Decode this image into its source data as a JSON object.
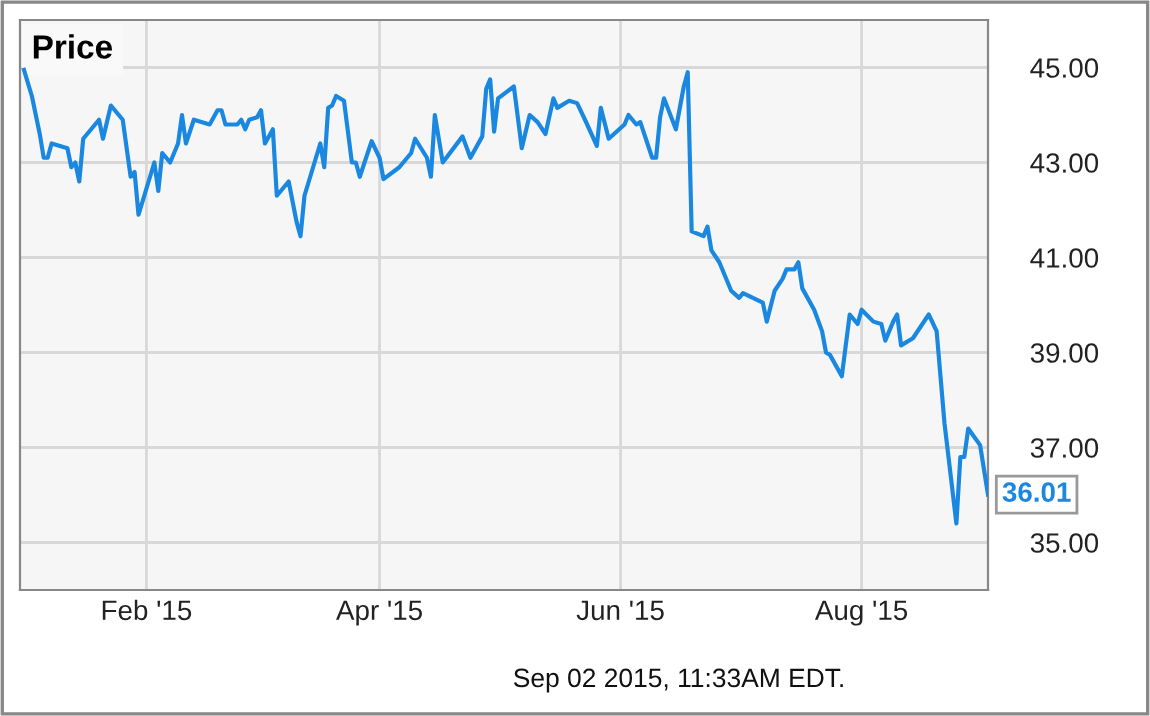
{
  "chart_data": {
    "type": "line",
    "title": "Price",
    "x": [
      "2015-01-01",
      "2015-01-03",
      "2015-01-05",
      "2015-01-06",
      "2015-01-07",
      "2015-01-08",
      "2015-01-12",
      "2015-01-13",
      "2015-01-14",
      "2015-01-15",
      "2015-01-16",
      "2015-01-20",
      "2015-01-21",
      "2015-01-23",
      "2015-01-26",
      "2015-01-28",
      "2015-01-29",
      "2015-01-30",
      "2015-02-03",
      "2015-02-04",
      "2015-02-05",
      "2015-02-07",
      "2015-02-09",
      "2015-02-10",
      "2015-02-11",
      "2015-02-13",
      "2015-02-17",
      "2015-02-19",
      "2015-02-20",
      "2015-02-21",
      "2015-02-24",
      "2015-02-25",
      "2015-02-26",
      "2015-02-27",
      "2015-03-01",
      "2015-03-02",
      "2015-03-03",
      "2015-03-05",
      "2015-03-06",
      "2015-03-09",
      "2015-03-11",
      "2015-03-12",
      "2015-03-13",
      "2015-03-17",
      "2015-03-18",
      "2015-03-19",
      "2015-03-20",
      "2015-03-21",
      "2015-03-23",
      "2015-03-25",
      "2015-03-26",
      "2015-03-27",
      "2015-03-30",
      "2015-04-01",
      "2015-04-02",
      "2015-04-06",
      "2015-04-07",
      "2015-04-09",
      "2015-04-10",
      "2015-04-13",
      "2015-04-14",
      "2015-04-15",
      "2015-04-17",
      "2015-04-22",
      "2015-04-24",
      "2015-04-27",
      "2015-04-28",
      "2015-04-29",
      "2015-04-30",
      "2015-05-01",
      "2015-05-05",
      "2015-05-07",
      "2015-05-09",
      "2015-05-11",
      "2015-05-13",
      "2015-05-15",
      "2015-05-16",
      "2015-05-19",
      "2015-05-21",
      "2015-05-23",
      "2015-05-26",
      "2015-05-27",
      "2015-05-29",
      "2015-06-02",
      "2015-06-03",
      "2015-06-05",
      "2015-06-06",
      "2015-06-09",
      "2015-06-10",
      "2015-06-11",
      "2015-06-12",
      "2015-06-15",
      "2015-06-17",
      "2015-06-18",
      "2015-06-19",
      "2015-06-22",
      "2015-06-23",
      "2015-06-24",
      "2015-06-26",
      "2015-06-29",
      "2015-07-01",
      "2015-07-02",
      "2015-07-07",
      "2015-07-08",
      "2015-07-10",
      "2015-07-12",
      "2015-07-13",
      "2015-07-15",
      "2015-07-16",
      "2015-07-17",
      "2015-07-20",
      "2015-07-22",
      "2015-07-23",
      "2015-07-24",
      "2015-07-27",
      "2015-07-29",
      "2015-07-31",
      "2015-08-01",
      "2015-08-04",
      "2015-08-06",
      "2015-08-07",
      "2015-08-09",
      "2015-08-10",
      "2015-08-11",
      "2015-08-14",
      "2015-08-18",
      "2015-08-20",
      "2015-08-22",
      "2015-08-25",
      "2015-08-26",
      "2015-08-27",
      "2015-08-28",
      "2015-08-31",
      "2015-09-02"
    ],
    "series": [
      {
        "color": "#1a87e0",
        "values": [
          44.95,
          44.4,
          43.6,
          43.1,
          43.1,
          43.4,
          43.3,
          42.9,
          43.0,
          42.6,
          43.5,
          43.9,
          43.5,
          44.2,
          43.9,
          42.7,
          42.8,
          41.9,
          43.0,
          42.4,
          43.2,
          43.0,
          43.4,
          44.0,
          43.4,
          43.9,
          43.8,
          44.1,
          44.1,
          43.8,
          43.8,
          43.9,
          43.7,
          43.9,
          43.95,
          44.1,
          43.4,
          43.7,
          42.3,
          42.6,
          41.75,
          41.45,
          42.3,
          43.4,
          42.9,
          44.15,
          44.2,
          44.4,
          44.3,
          43.0,
          43.0,
          42.7,
          43.45,
          43.1,
          42.65,
          42.9,
          43.0,
          43.2,
          43.5,
          43.1,
          42.7,
          44.0,
          43.0,
          43.55,
          43.1,
          43.55,
          44.55,
          44.75,
          43.65,
          44.35,
          44.6,
          43.3,
          44.0,
          43.85,
          43.6,
          44.35,
          44.15,
          44.3,
          44.25,
          43.9,
          43.35,
          44.15,
          43.5,
          43.8,
          44.0,
          43.8,
          43.85,
          43.1,
          43.1,
          43.95,
          44.35,
          43.7,
          44.6,
          44.9,
          41.55,
          41.45,
          41.65,
          41.15,
          40.9,
          40.3,
          40.15,
          40.25,
          40.05,
          39.65,
          40.3,
          40.55,
          40.75,
          40.75,
          40.9,
          40.35,
          39.9,
          39.45,
          39.0,
          38.95,
          38.5,
          39.8,
          39.6,
          39.9,
          39.65,
          39.6,
          39.25,
          39.65,
          39.8,
          39.15,
          39.3,
          39.8,
          39.45,
          37.5,
          35.4,
          36.8,
          36.8,
          37.4,
          37.05,
          36.01
        ]
      }
    ],
    "xlim": [
      "2014-12-31",
      "2015-09-02"
    ],
    "xticks": [
      {
        "value": "2015-02-01",
        "label": "Feb '15"
      },
      {
        "value": "2015-04-01",
        "label": "Apr '15"
      },
      {
        "value": "2015-06-01",
        "label": "Jun '15"
      },
      {
        "value": "2015-08-01",
        "label": "Aug '15"
      }
    ],
    "ylim": [
      34,
      46
    ],
    "yticks": [
      {
        "value": 35,
        "label": "35.00"
      },
      {
        "value": 37,
        "label": "37.00"
      },
      {
        "value": 39,
        "label": "39.00"
      },
      {
        "value": 41,
        "label": "41.00"
      },
      {
        "value": 43,
        "label": "43.00"
      },
      {
        "value": 45,
        "label": "45.00"
      }
    ],
    "grid": true,
    "legend": false,
    "marker": "none",
    "line_style": "solid",
    "annotations": [
      {
        "text": "36.01",
        "x": "2015-09-02",
        "y": 36.01
      },
      "Sep 02 2015, 11:33AM EDT."
    ]
  }
}
